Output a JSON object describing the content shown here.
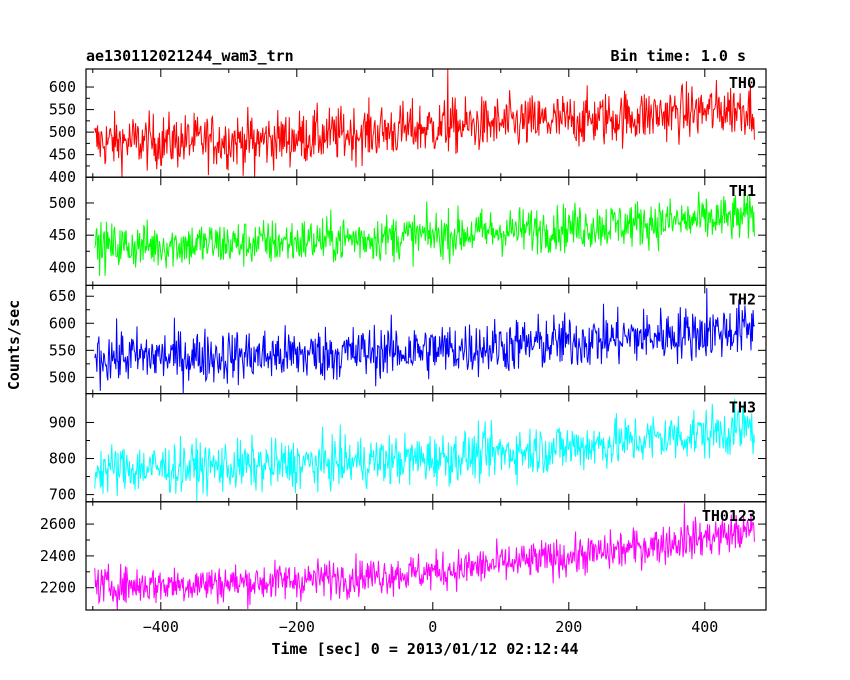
{
  "chart_data": {
    "type": "line",
    "title": "ae130112021244_wam3_trn",
    "subtitle": "Bin time: 1.0 s",
    "xlabel": "Time [sec] 0 = 2013/01/12 02:12:44",
    "ylabel": "Counts/sec",
    "xlim": [
      -510,
      490
    ],
    "x_ticks": [
      -400,
      -200,
      0,
      200,
      400
    ],
    "x_range": [
      -497,
      473
    ],
    "series": [
      {
        "name": "TH0",
        "color": "#ff0000",
        "ylim": [
          400,
          640
        ],
        "y_ticks": [
          400,
          450,
          500,
          550,
          600
        ],
        "trend": [
          [
            -497,
            478
          ],
          [
            -250,
            482
          ],
          [
            0,
            510
          ],
          [
            250,
            530
          ],
          [
            473,
            555
          ]
        ],
        "noise": 30,
        "spikes": [
          [
            22,
            640
          ],
          [
            -262,
            398
          ]
        ]
      },
      {
        "name": "TH1",
        "color": "#00ff00",
        "ylim": [
          372,
          540
        ],
        "y_ticks": [
          400,
          450,
          500
        ],
        "trend": [
          [
            -497,
            432
          ],
          [
            -250,
            438
          ],
          [
            0,
            450
          ],
          [
            250,
            465
          ],
          [
            473,
            478
          ]
        ],
        "noise": 18,
        "spikes": []
      },
      {
        "name": "TH2",
        "color": "#0000ff",
        "ylim": [
          470,
          670
        ],
        "y_ticks": [
          500,
          550,
          600,
          650
        ],
        "trend": [
          [
            -497,
            538
          ],
          [
            -250,
            540
          ],
          [
            0,
            550
          ],
          [
            250,
            570
          ],
          [
            473,
            590
          ]
        ],
        "noise": 25,
        "spikes": [
          [
            403,
            665
          ]
        ]
      },
      {
        "name": "TH3",
        "color": "#00ffff",
        "ylim": [
          680,
          980
        ],
        "y_ticks": [
          700,
          800,
          900
        ],
        "trend": [
          [
            -497,
            770
          ],
          [
            -250,
            780
          ],
          [
            0,
            800
          ],
          [
            250,
            840
          ],
          [
            473,
            885
          ]
        ],
        "noise": 35,
        "spikes": []
      },
      {
        "name": "TH0123",
        "color": "#ff00ff",
        "ylim": [
          2060,
          2740
        ],
        "y_ticks": [
          2200,
          2400,
          2600
        ],
        "trend": [
          [
            -497,
            2210
          ],
          [
            -250,
            2235
          ],
          [
            0,
            2300
          ],
          [
            250,
            2420
          ],
          [
            473,
            2560
          ]
        ],
        "noise": 60,
        "spikes": [
          [
            370,
            2730
          ]
        ]
      }
    ]
  }
}
